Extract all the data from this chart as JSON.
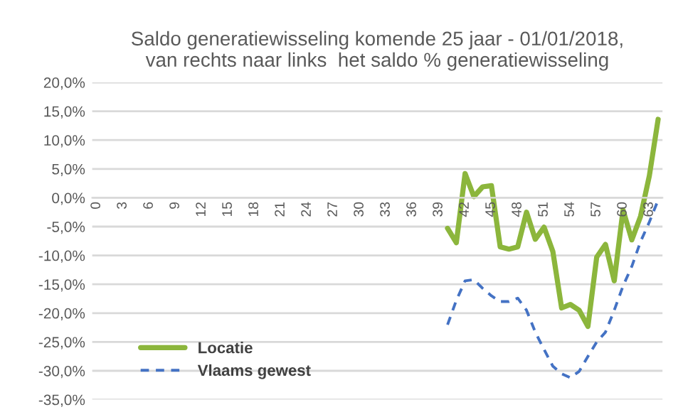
{
  "chart_data": {
    "type": "line",
    "title": "Saldo generatiewisseling komende 25 jaar - 01/01/2018,\nvan rechts naar links  het saldo % generatiewisseling",
    "categories": [
      "0",
      null,
      null,
      "3",
      null,
      null,
      "6",
      null,
      null,
      "9",
      null,
      null,
      "12",
      null,
      null,
      "15",
      null,
      null,
      "18",
      null,
      null,
      "21",
      null,
      null,
      "24",
      null,
      null,
      "27",
      null,
      null,
      "30",
      null,
      null,
      "33",
      null,
      null,
      "36",
      null,
      null,
      "39",
      null,
      null,
      "42",
      null,
      null,
      "45",
      null,
      null,
      "48",
      null,
      null,
      "51",
      null,
      null,
      "54",
      null,
      null,
      "57",
      null,
      null,
      "60",
      null,
      null,
      "63",
      null
    ],
    "series": [
      {
        "name": "Locatie",
        "color": "#8cb63c",
        "line_style": "solid",
        "values": [
          null,
          null,
          null,
          null,
          null,
          null,
          null,
          null,
          null,
          null,
          null,
          null,
          null,
          null,
          null,
          null,
          null,
          null,
          null,
          null,
          null,
          null,
          null,
          null,
          null,
          null,
          null,
          null,
          null,
          null,
          null,
          null,
          null,
          null,
          null,
          null,
          null,
          null,
          null,
          null,
          -5.3,
          -7.8,
          4.2,
          0.2,
          1.9,
          2.1,
          -8.5,
          -8.9,
          -8.5,
          -2.5,
          -7.2,
          -5.1,
          -9.3,
          -19.1,
          -18.5,
          -19.5,
          -22.3,
          -10.3,
          -8.1,
          -14.4,
          -2.1,
          -7.3,
          -3.2,
          3.8,
          13.6
        ]
      },
      {
        "name": "Vlaams gewest",
        "color": "#4472c4",
        "line_style": "dashed",
        "values": [
          null,
          null,
          null,
          null,
          null,
          null,
          null,
          null,
          null,
          null,
          null,
          null,
          null,
          null,
          null,
          null,
          null,
          null,
          null,
          null,
          null,
          null,
          null,
          null,
          null,
          null,
          null,
          null,
          null,
          null,
          null,
          null,
          null,
          null,
          null,
          null,
          null,
          null,
          null,
          null,
          -22,
          -17.8,
          -14.4,
          -14.2,
          -15.7,
          -17,
          -18,
          -18,
          -17.4,
          -19.5,
          -23.3,
          -26.3,
          -29.2,
          -30.5,
          -31.2,
          -30.1,
          -27.5,
          -25,
          -23.3,
          -19.5,
          -15.3,
          -11.9,
          -7.6,
          -4.2,
          -0.4
        ]
      }
    ],
    "ylim": [
      -35,
      20
    ],
    "yticks": [
      {
        "value": -35,
        "label": "-35,0%"
      },
      {
        "value": -30,
        "label": "-30,0%"
      },
      {
        "value": -25,
        "label": "-25,0%"
      },
      {
        "value": -20,
        "label": "-20,0%"
      },
      {
        "value": -15,
        "label": "-15,0%"
      },
      {
        "value": -10,
        "label": "-10,0%"
      },
      {
        "value": -5,
        "label": "-5,0%"
      },
      {
        "value": 0,
        "label": "0,0%"
      },
      {
        "value": 5,
        "label": "5,0%"
      },
      {
        "value": 10,
        "label": "10,0%"
      },
      {
        "value": 15,
        "label": "15,0%"
      },
      {
        "value": 20,
        "label": "20,0%"
      }
    ],
    "grid": "y",
    "legend": "bottom left"
  }
}
